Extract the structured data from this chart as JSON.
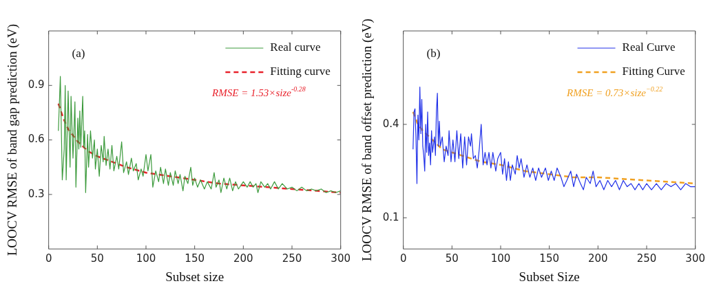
{
  "chart_data": [
    {
      "type": "line",
      "xlabel": "Subset size",
      "ylabel": "LOOCV RMSE of band gap prediction (eV)",
      "annotations": [
        "(a)",
        "RMSE = 1.53×size$^{-0.28}$"
      ],
      "xlim": [
        0,
        300
      ],
      "xticks": [
        0,
        50,
        100,
        150,
        200,
        250,
        300
      ],
      "ylim": [
        0,
        1.2
      ],
      "yticks": [
        0.3,
        0.6,
        0.9
      ],
      "grid": false,
      "legend": "top right",
      "marker": "none",
      "series": [
        {
          "name": "Real curve",
          "color": "#3c9a3c",
          "line_style": "solid",
          "x": [
            10,
            12,
            14,
            16,
            17,
            18,
            20,
            22,
            23,
            25,
            27,
            28,
            30,
            31,
            32,
            33,
            35,
            36,
            37,
            38,
            40,
            41,
            43,
            45,
            47,
            48,
            50,
            52,
            54,
            56,
            57,
            59,
            61,
            63,
            65,
            67,
            70,
            72,
            75,
            77,
            80,
            82,
            85,
            87,
            90,
            92,
            95,
            97,
            100,
            102,
            105,
            107,
            110,
            113,
            115,
            118,
            120,
            123,
            125,
            128,
            130,
            133,
            135,
            138,
            140,
            143,
            146,
            148,
            150,
            153,
            156,
            160,
            163,
            167,
            170,
            172,
            175,
            177,
            180,
            183,
            186,
            189,
            192,
            195,
            200,
            204,
            207,
            210,
            213,
            215,
            218,
            222,
            225,
            228,
            232,
            236,
            240,
            245,
            250,
            255,
            260,
            265,
            270,
            275,
            280,
            285,
            290,
            295,
            300
          ],
          "values": [
            0.65,
            0.95,
            0.38,
            0.55,
            0.9,
            0.38,
            0.87,
            0.45,
            0.84,
            0.5,
            0.81,
            0.34,
            0.72,
            0.55,
            0.76,
            0.56,
            0.84,
            0.56,
            0.65,
            0.31,
            0.63,
            0.45,
            0.65,
            0.5,
            0.6,
            0.44,
            0.55,
            0.4,
            0.57,
            0.48,
            0.62,
            0.46,
            0.55,
            0.44,
            0.57,
            0.43,
            0.51,
            0.44,
            0.59,
            0.42,
            0.48,
            0.41,
            0.5,
            0.43,
            0.47,
            0.38,
            0.44,
            0.4,
            0.52,
            0.43,
            0.52,
            0.34,
            0.43,
            0.37,
            0.45,
            0.36,
            0.44,
            0.35,
            0.42,
            0.35,
            0.43,
            0.36,
            0.41,
            0.32,
            0.4,
            0.36,
            0.45,
            0.35,
            0.39,
            0.34,
            0.38,
            0.33,
            0.37,
            0.33,
            0.42,
            0.34,
            0.38,
            0.31,
            0.39,
            0.33,
            0.39,
            0.32,
            0.37,
            0.33,
            0.37,
            0.34,
            0.37,
            0.34,
            0.36,
            0.31,
            0.37,
            0.34,
            0.36,
            0.33,
            0.37,
            0.33,
            0.36,
            0.33,
            0.34,
            0.32,
            0.34,
            0.32,
            0.33,
            0.32,
            0.33,
            0.31,
            0.32,
            0.31,
            0.32
          ]
        },
        {
          "name": "Fitting curve",
          "color": "#e8212b",
          "line_style": "dashed",
          "x": [
            10,
            15,
            20,
            30,
            40,
            50,
            60,
            80,
            100,
            125,
            150,
            175,
            200,
            225,
            250,
            275,
            300
          ],
          "values": [
            0.8,
            0.72,
            0.66,
            0.59,
            0.54,
            0.51,
            0.49,
            0.45,
            0.42,
            0.4,
            0.38,
            0.36,
            0.35,
            0.34,
            0.33,
            0.32,
            0.31
          ]
        }
      ]
    },
    {
      "type": "line",
      "xlabel": "Subset Size",
      "ylabel": "LOOCV RMSE of band offset prediction (eV)",
      "annotations": [
        "(b)",
        "RMSE = 0.73×size$^{−0.22}$"
      ],
      "xlim": [
        0,
        300
      ],
      "xticks": [
        0,
        50,
        100,
        150,
        200,
        250,
        300
      ],
      "ylim": [
        0,
        0.7
      ],
      "yticks": [
        0.1,
        0.4
      ],
      "grid": false,
      "legend": "top right",
      "marker": "none",
      "series": [
        {
          "name": "Real Curve",
          "color": "#2030e8",
          "line_style": "solid",
          "x": [
            10,
            11,
            12,
            13,
            14,
            15,
            16,
            17,
            18,
            19,
            20,
            21,
            22,
            23,
            24,
            25,
            26,
            27,
            28,
            29,
            30,
            32,
            33,
            34,
            35,
            36,
            37,
            38,
            40,
            42,
            44,
            46,
            47,
            49,
            51,
            53,
            55,
            57,
            59,
            61,
            63,
            65,
            67,
            69,
            70,
            72,
            74,
            76,
            78,
            80,
            82,
            84,
            86,
            88,
            90,
            92,
            95,
            97,
            100,
            102,
            104,
            106,
            108,
            110,
            112,
            115,
            117,
            119,
            121,
            124,
            127,
            130,
            133,
            136,
            139,
            142,
            146,
            149,
            152,
            155,
            158,
            162,
            165,
            168,
            172,
            175,
            178,
            182,
            185,
            188,
            192,
            195,
            198,
            202,
            206,
            210,
            214,
            218,
            222,
            226,
            230,
            234,
            238,
            242,
            246,
            250,
            255,
            260,
            265,
            270,
            275,
            280,
            285,
            290,
            295,
            300
          ],
          "values": [
            0.32,
            0.44,
            0.45,
            0.36,
            0.21,
            0.43,
            0.35,
            0.52,
            0.37,
            0.48,
            0.33,
            0.3,
            0.25,
            0.4,
            0.31,
            0.44,
            0.3,
            0.34,
            0.27,
            0.38,
            0.31,
            0.36,
            0.3,
            0.44,
            0.5,
            0.33,
            0.41,
            0.33,
            0.36,
            0.28,
            0.33,
            0.3,
            0.38,
            0.28,
            0.35,
            0.28,
            0.38,
            0.29,
            0.37,
            0.26,
            0.36,
            0.27,
            0.36,
            0.33,
            0.37,
            0.29,
            0.3,
            0.26,
            0.32,
            0.4,
            0.27,
            0.31,
            0.27,
            0.31,
            0.26,
            0.31,
            0.25,
            0.29,
            0.31,
            0.24,
            0.29,
            0.22,
            0.28,
            0.22,
            0.27,
            0.24,
            0.3,
            0.26,
            0.29,
            0.23,
            0.27,
            0.23,
            0.26,
            0.22,
            0.26,
            0.23,
            0.26,
            0.22,
            0.25,
            0.22,
            0.26,
            0.23,
            0.2,
            0.22,
            0.25,
            0.2,
            0.24,
            0.21,
            0.19,
            0.23,
            0.21,
            0.25,
            0.2,
            0.22,
            0.19,
            0.22,
            0.2,
            0.22,
            0.19,
            0.22,
            0.2,
            0.21,
            0.19,
            0.21,
            0.19,
            0.21,
            0.19,
            0.21,
            0.19,
            0.21,
            0.2,
            0.21,
            0.19,
            0.21,
            0.2,
            0.2
          ]
        },
        {
          "name": "Fitting Curve",
          "color": "#f0a020",
          "line_style": "dashed",
          "x": [
            10,
            15,
            20,
            30,
            40,
            50,
            60,
            80,
            100,
            125,
            150,
            175,
            200,
            250,
            300
          ],
          "values": [
            0.44,
            0.4,
            0.38,
            0.35,
            0.32,
            0.31,
            0.3,
            0.28,
            0.27,
            0.25,
            0.24,
            0.23,
            0.23,
            0.22,
            0.21
          ]
        }
      ]
    }
  ]
}
